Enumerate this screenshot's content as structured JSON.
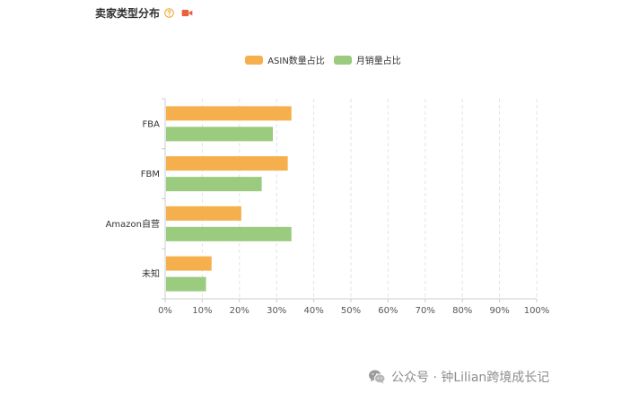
{
  "header": {
    "title": "卖家类型分布",
    "help_icon": "question-circle-icon",
    "video_icon": "video-camera-icon"
  },
  "colors": {
    "series_asin": "#f5b04d",
    "series_sales": "#9bcb7f",
    "axis": "#cccccc",
    "grid": "#e3e3e3",
    "help_icon": "#f0a020",
    "video_icon": "#e8603c"
  },
  "chart_data": {
    "type": "bar",
    "orientation": "horizontal",
    "categories": [
      "FBA",
      "FBM",
      "Amazon自营",
      "未知"
    ],
    "series": [
      {
        "name": "ASIN数量占比",
        "values": [
          34,
          33,
          20.5,
          12.5
        ]
      },
      {
        "name": "月销量占比",
        "values": [
          29,
          26,
          34,
          11
        ]
      }
    ],
    "xlim": [
      0,
      100
    ],
    "xticks": [
      "0%",
      "10%",
      "20%",
      "30%",
      "40%",
      "50%",
      "60%",
      "70%",
      "80%",
      "90%",
      "100%"
    ],
    "grid": "vertical dashed",
    "legend": "top-center"
  },
  "watermark": {
    "icon": "wechat-icon",
    "text": "公众号 · 钟Lilian跨境成长记"
  }
}
